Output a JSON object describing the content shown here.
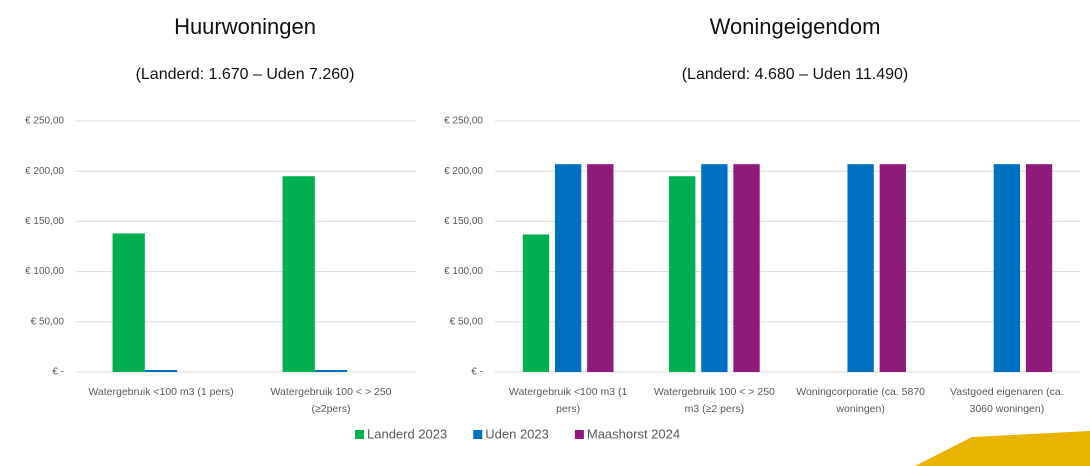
{
  "chart_data": [
    {
      "type": "bar",
      "title": "Huurwoningen",
      "subtitle": "(Landerd: 1.670 – Uden 7.260)",
      "categories": [
        "Watergebruik <100 m3 (1 pers)",
        "Watergebruik 100 < > 250 (≥2pers)"
      ],
      "series": [
        {
          "name": "Landerd 2023",
          "color": "#00b050",
          "values": [
            138,
            195
          ]
        },
        {
          "name": "Uden 2023",
          "color": "#0070c0",
          "values": [
            2,
            2
          ]
        }
      ],
      "ylim": [
        0,
        250
      ],
      "yticks": [
        {
          "value": 0,
          "label": "€ -"
        },
        {
          "value": 50,
          "label": "€ 50,00"
        },
        {
          "value": 100,
          "label": "€ 100,00"
        },
        {
          "value": 150,
          "label": "€ 150,00"
        },
        {
          "value": 200,
          "label": "€ 200,00"
        },
        {
          "value": 250,
          "label": "€ 250,00"
        }
      ],
      "grid": true
    },
    {
      "type": "bar",
      "title": "Woningeigendom",
      "subtitle": "(Landerd: 4.680 – Uden 11.490)",
      "categories": [
        "Watergebruik <100 m3 (1 pers)",
        "Watergebruik 100 < > 250 m3 (≥2 pers)",
        "Woningcorporatie (ca. 5870 woningen)",
        "Vastgoed eigenaren (ca. 3060 woningen)"
      ],
      "series": [
        {
          "name": "Landerd 2023",
          "color": "#00b050",
          "values": [
            137,
            195,
            null,
            null
          ]
        },
        {
          "name": "Uden 2023",
          "color": "#0070c0",
          "values": [
            207,
            207,
            207,
            207
          ]
        },
        {
          "name": "Maashorst 2024",
          "color": "#8e1b7a",
          "values": [
            207,
            207,
            207,
            207
          ]
        }
      ],
      "ylim": [
        0,
        250
      ],
      "yticks": [
        {
          "value": 0,
          "label": "€ -"
        },
        {
          "value": 50,
          "label": "€ 50,00"
        },
        {
          "value": 100,
          "label": "€ 100,00"
        },
        {
          "value": 150,
          "label": "€ 150,00"
        },
        {
          "value": 200,
          "label": "€ 200,00"
        },
        {
          "value": 250,
          "label": "€ 250,00"
        }
      ],
      "grid": true
    }
  ]
}
